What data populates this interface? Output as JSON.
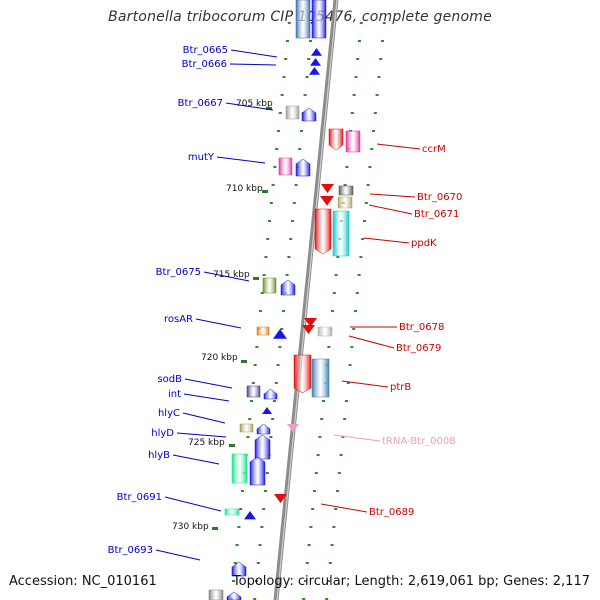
{
  "title": "Bartonella tribocorum CIP 105476, complete genome",
  "footer": {
    "accession": "Accession: NC_010161",
    "stats": "Topology: circular; Length: 2,619,061 bp; Genes: 2,117"
  },
  "colors": {
    "left_label": "#0000cc",
    "right_label": "#cc0000",
    "trna_label": "#f19cc8",
    "dots": "#2e8b2e",
    "backbone": "#8c8c8c"
  },
  "ticks": [
    "705 kbp",
    "710 kbp",
    "715 kbp",
    "720 kbp",
    "725 kbp",
    "730 kbp"
  ],
  "left_genes": [
    "Btr_0665",
    "Btr_0666",
    "Btr_0667",
    "mutY",
    "Btr_0675",
    "rosAR",
    "sodB",
    "int",
    "hlyC",
    "hlyD",
    "hlyB",
    "Btr_0691",
    "Btr_0693"
  ],
  "right_genes": [
    "ccrM",
    "Btr_0670",
    "Btr_0671",
    "ppdK",
    "Btr_0678",
    "Btr_0679",
    "ptrB",
    "tRNA-Btr_0008",
    "Btr_0689"
  ]
}
